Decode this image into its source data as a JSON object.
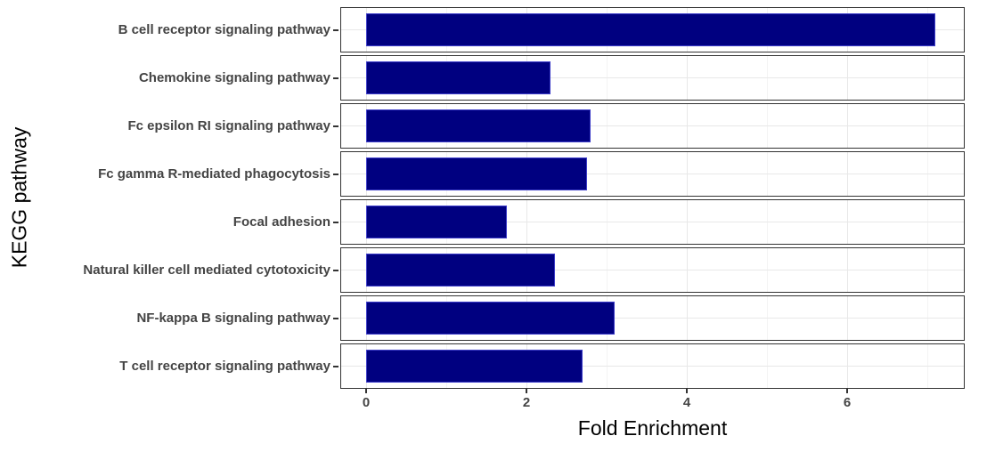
{
  "chart_data": {
    "type": "bar",
    "orientation": "horizontal",
    "layout": "one_facet_panel_per_category",
    "title": "",
    "xlabel": "Fold Enrichment",
    "ylabel": "KEGG pathway",
    "categories": [
      "B cell receptor signaling pathway",
      "Chemokine signaling pathway",
      "Fc epsilon RI signaling pathway",
      "Fc gamma R-mediated phagocytosis",
      "Focal adhesion",
      "Natural killer cell mediated cytotoxicity",
      "NF-kappa B signaling pathway",
      "T cell receptor signaling pathway"
    ],
    "values": [
      7.1,
      2.3,
      2.8,
      2.75,
      1.75,
      2.35,
      3.1,
      2.7
    ],
    "x_ticks": [
      0,
      2,
      4,
      6
    ],
    "x_minor_gridlines": [
      1,
      3,
      5,
      7
    ],
    "xlim": [
      -0.32,
      7.45
    ],
    "legend": "none",
    "grid": true,
    "colors": {
      "bar_fill": "#000080",
      "bar_stroke": "#3c3cc8",
      "panel_border": "#333333",
      "grid_major": "#e8e8e8",
      "grid_minor": "#f4f4f4",
      "axis_text": "#444444",
      "axis_title": "#000000",
      "background": "#ffffff"
    }
  }
}
